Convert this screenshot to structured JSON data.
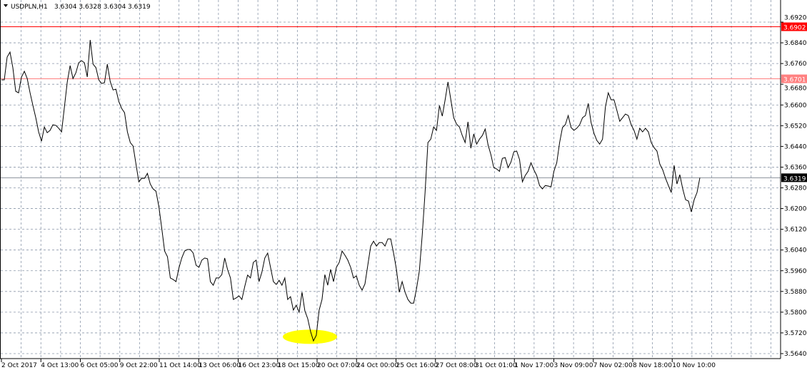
{
  "header": {
    "menu_icon": "triangle-down-icon",
    "symbol": "USDPLN,H1",
    "ohlc": "3.6304 3.6328 3.6304 3.6319"
  },
  "colors": {
    "line": "#000000",
    "grid": "#8a96a8",
    "resistance_line": "#ff0000",
    "resistance_line_2": "#ff8080",
    "bid_line": "#8a9099",
    "highlight": "#ffff00"
  },
  "chart_data": {
    "type": "line",
    "title": "USDPLN,H1",
    "ylim": [
      3.564,
      3.692
    ],
    "grid": true,
    "y_ticks": [
      "3.6920",
      "3.6840",
      "3.6760",
      "3.6680",
      "3.6600",
      "3.6520",
      "3.6440",
      "3.6360",
      "3.6280",
      "3.6200",
      "3.6120",
      "3.6040",
      "3.5960",
      "3.5880",
      "3.5800",
      "3.5720",
      "3.5640"
    ],
    "x_ticks": [
      "2 Oct 2017",
      "4 Oct 13:00",
      "6 Oct 05:00",
      "9 Oct 22:00",
      "11 Oct 14:00",
      "13 Oct 06:00",
      "16 Oct 23:00",
      "18 Oct 15:00",
      "20 Oct 07:00",
      "24 Oct 00:00",
      "25 Oct 16:00",
      "27 Oct 08:00",
      "31 Oct 01:00",
      "1 Nov 17:00",
      "3 Nov 09:00",
      "7 Nov 02:00",
      "8 Nov 18:00",
      "10 Nov 10:00"
    ],
    "horizontal_lines": [
      {
        "label": "3.6902",
        "value": 3.6902,
        "color": "#ff0000"
      },
      {
        "label": "3.6701",
        "value": 3.6701,
        "color": "#ff8080"
      },
      {
        "label": "3.6319",
        "value": 3.6319,
        "color": "#8a9099",
        "kind": "bid"
      }
    ],
    "highlight": {
      "shape": "ellipse",
      "color": "#ffff00",
      "near": "18 Oct 15:00 – 20 Oct 07:00",
      "value": 3.5705
    },
    "series": [
      {
        "values": [
          3.6697,
          3.6697,
          3.6785,
          3.6804,
          3.6744,
          3.6653,
          3.6647,
          3.6708,
          3.673,
          3.6702,
          3.6647,
          3.6598,
          3.6551,
          3.6496,
          3.646,
          3.6515,
          3.6493,
          3.6502,
          3.6524,
          3.6521,
          3.651,
          3.6496,
          3.6592,
          3.6689,
          3.6752,
          3.6702,
          3.6724,
          3.6763,
          3.6771,
          3.6763,
          3.6708,
          3.6851,
          3.6758,
          3.6744,
          3.6697,
          3.6683,
          3.6686,
          3.6758,
          3.6691,
          3.6658,
          3.6661,
          3.6614,
          3.6587,
          3.657,
          3.6496,
          3.6455,
          3.6441,
          3.6372,
          3.6303,
          3.6317,
          3.6317,
          3.6336,
          3.6295,
          3.6276,
          3.6267,
          3.6207,
          3.6124,
          3.6036,
          3.6014,
          3.5932,
          3.5926,
          3.5918,
          3.597,
          3.6009,
          3.6036,
          3.6042,
          3.6042,
          3.6028,
          3.5981,
          3.5973,
          3.6001,
          3.6009,
          3.6006,
          3.5918,
          3.5904,
          3.5932,
          3.5932,
          3.5945,
          3.6009,
          3.5965,
          3.5932,
          3.5849,
          3.5855,
          3.5863,
          3.5849,
          3.5899,
          3.5943,
          3.5932,
          3.5992,
          3.6001,
          3.5918,
          3.5954,
          3.6009,
          3.6028,
          3.5973,
          3.5918,
          3.5907,
          3.5923,
          3.5904,
          3.5932,
          3.5849,
          3.586,
          3.5808,
          3.5827,
          3.58,
          3.5877,
          3.5805,
          3.5775,
          3.5725,
          3.5689,
          3.5711,
          3.5808,
          3.5849,
          3.5945,
          3.5904,
          3.5965,
          3.5918,
          3.5973,
          3.5992,
          3.6036,
          3.602,
          3.6001,
          3.5973,
          3.5932,
          3.594,
          3.5904,
          3.5885,
          3.5909,
          3.5981,
          3.6055,
          3.6074,
          3.6055,
          3.6069,
          3.6069,
          3.6055,
          3.6083,
          3.6083,
          3.6028,
          3.5965,
          3.5877,
          3.5918,
          3.5877,
          3.5849,
          3.5835,
          3.5835,
          3.589,
          3.5959,
          3.6097,
          3.6262,
          3.6455,
          3.6468,
          3.6515,
          3.6502,
          3.6598,
          3.6557,
          3.662,
          3.6689,
          3.662,
          3.6551,
          3.6526,
          3.6515,
          3.6482,
          3.6455,
          3.6535,
          3.6433,
          3.6488,
          3.6449,
          3.6468,
          3.6482,
          3.6507,
          3.6446,
          3.6408,
          3.6358,
          3.6353,
          3.6344,
          3.6394,
          3.6397,
          3.6358,
          3.638,
          3.6419,
          3.6422,
          3.6389,
          3.6303,
          3.6328,
          3.6344,
          3.6377,
          3.635,
          3.6328,
          3.6289,
          3.6276,
          3.6289,
          3.6287,
          3.6284,
          3.6344,
          3.6377,
          3.6455,
          3.6513,
          3.6524,
          3.6559,
          3.6513,
          3.6502,
          3.651,
          3.6524,
          3.6551,
          3.6559,
          3.6606,
          3.6532,
          3.6491,
          3.6463,
          3.6449,
          3.6468,
          3.6592,
          3.6647,
          3.662,
          3.662,
          3.6579,
          3.6537,
          3.6551,
          3.6565,
          3.6559,
          3.6524,
          3.6502,
          3.6468,
          3.651,
          3.6496,
          3.651,
          3.6496,
          3.6455,
          3.6435,
          3.6422,
          3.6372,
          3.635,
          3.6317,
          3.6289,
          3.6262,
          3.6367,
          3.6295,
          3.6331,
          3.6276,
          3.6234,
          3.6229,
          3.6187,
          3.6234,
          3.6262,
          3.6319
        ]
      }
    ]
  }
}
